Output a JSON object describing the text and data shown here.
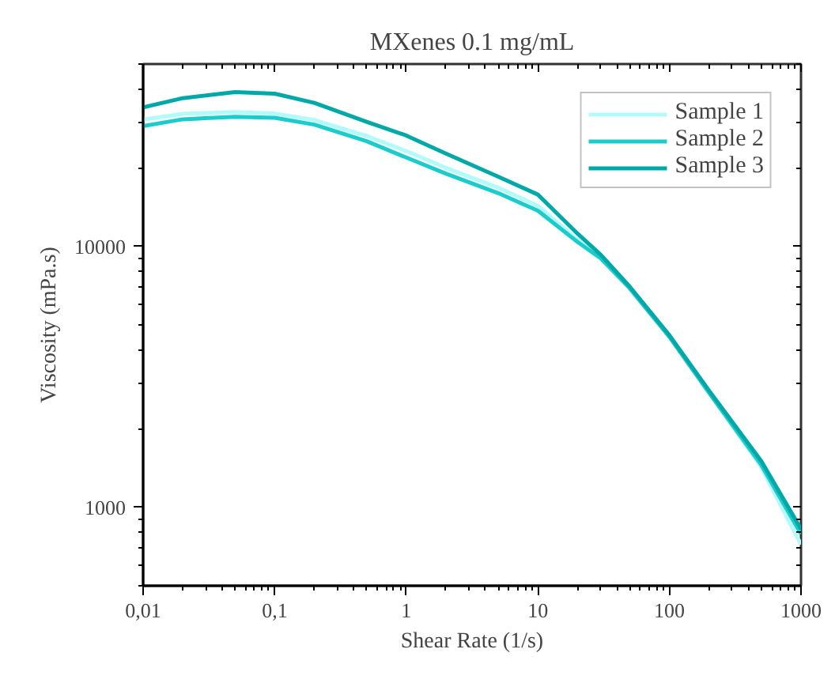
{
  "chart_data": {
    "type": "line",
    "title": "MXenes 0.1 mg/mL",
    "xlabel": "Shear Rate (1/s)",
    "ylabel": "Viscosity (mPa.s)",
    "x": [
      0.01,
      0.02,
      0.05,
      0.1,
      0.2,
      0.5,
      1,
      2,
      5,
      10,
      20,
      30,
      50,
      100,
      200,
      500,
      1000
    ],
    "series": [
      {
        "name": "Sample 1",
        "color": "#b3fafa",
        "values": [
          30600,
          32200,
          32700,
          32300,
          30500,
          26500,
          23200,
          20000,
          16800,
          14300,
          10600,
          9100,
          6900,
          4500,
          2750,
          1420,
          720
        ]
      },
      {
        "name": "Sample 2",
        "color": "#1ccccc",
        "values": [
          28900,
          30700,
          31400,
          31100,
          29300,
          25300,
          21900,
          19000,
          16000,
          13700,
          10400,
          9000,
          6900,
          4500,
          2750,
          1450,
          790
        ]
      },
      {
        "name": "Sample 3",
        "color": "#00a8a8",
        "values": [
          34100,
          37000,
          39000,
          38500,
          35500,
          30000,
          26600,
          22700,
          18500,
          15800,
          11200,
          9300,
          7000,
          4560,
          2800,
          1500,
          825
        ]
      }
    ],
    "log": "xy",
    "xlim": [
      0.01,
      1000
    ],
    "ylim": [
      500,
      50000
    ],
    "xticks": [
      {
        "value": 0.01,
        "label": "0,01"
      },
      {
        "value": 0.1,
        "label": "0,1"
      },
      1,
      10,
      100,
      1000
    ],
    "yticks": [
      1000,
      10000
    ],
    "grid": false,
    "legend": "top right",
    "line_style": "solid",
    "marker": "none"
  }
}
